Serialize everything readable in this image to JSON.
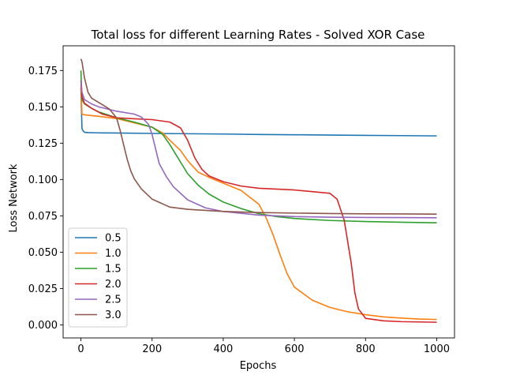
{
  "chart_data": {
    "type": "line",
    "title": "Total loss for different Learning Rates - Solved XOR Case",
    "xlabel": "Epochs",
    "ylabel": "Loss Network",
    "xlim": [
      -50,
      1050
    ],
    "ylim": [
      -0.009,
      0.192
    ],
    "grid": false,
    "legend_position": "lower-left",
    "x_ticks": [
      0,
      200,
      400,
      600,
      800,
      1000
    ],
    "x_tick_labels": [
      "0",
      "200",
      "400",
      "600",
      "800",
      "1000"
    ],
    "y_ticks": [
      0.0,
      0.025,
      0.05,
      0.075,
      0.1,
      0.125,
      0.15,
      0.175
    ],
    "y_tick_labels": [
      "0.000",
      "0.025",
      "0.050",
      "0.075",
      "0.100",
      "0.125",
      "0.150",
      "0.175"
    ],
    "series": [
      {
        "name": "0.5",
        "color": "#1f77b4",
        "x": [
          0,
          3,
          6,
          10,
          20,
          50,
          100,
          200,
          300,
          400,
          500,
          600,
          700,
          800,
          900,
          1000
        ],
        "y": [
          0.163,
          0.135,
          0.1335,
          0.1325,
          0.1323,
          0.1321,
          0.132,
          0.1317,
          0.1315,
          0.1313,
          0.131,
          0.1308,
          0.1306,
          0.1304,
          0.1302,
          0.13
        ]
      },
      {
        "name": "1.0",
        "color": "#ff7f0e",
        "x": [
          0,
          3,
          10,
          50,
          100,
          150,
          200,
          230,
          250,
          280,
          300,
          330,
          360,
          400,
          450,
          500,
          520,
          540,
          560,
          580,
          600,
          650,
          700,
          750,
          800,
          850,
          900,
          950,
          1000
        ],
        "y": [
          0.165,
          0.145,
          0.1445,
          0.1435,
          0.142,
          0.139,
          0.136,
          0.132,
          0.127,
          0.12,
          0.113,
          0.105,
          0.1015,
          0.0975,
          0.0925,
          0.083,
          0.074,
          0.062,
          0.048,
          0.035,
          0.026,
          0.017,
          0.012,
          0.009,
          0.007,
          0.0055,
          0.0047,
          0.004,
          0.0037
        ]
      },
      {
        "name": "1.5",
        "color": "#2ca02c",
        "x": [
          0,
          3,
          10,
          30,
          50,
          100,
          150,
          200,
          230,
          250,
          270,
          300,
          330,
          360,
          400,
          450,
          500,
          550,
          600,
          700,
          800,
          900,
          1000
        ],
        "y": [
          0.175,
          0.155,
          0.152,
          0.149,
          0.1465,
          0.1425,
          0.1395,
          0.136,
          0.131,
          0.124,
          0.116,
          0.104,
          0.096,
          0.09,
          0.0845,
          0.08,
          0.0765,
          0.0745,
          0.0732,
          0.0718,
          0.0711,
          0.0706,
          0.0702
        ]
      },
      {
        "name": "2.0",
        "color": "#d62728",
        "x": [
          0,
          3,
          10,
          30,
          60,
          100,
          150,
          200,
          250,
          280,
          300,
          320,
          340,
          360,
          400,
          450,
          500,
          600,
          700,
          720,
          740,
          760,
          770,
          780,
          800,
          850,
          900,
          1000
        ],
        "y": [
          0.168,
          0.157,
          0.1525,
          0.149,
          0.145,
          0.1425,
          0.1418,
          0.1412,
          0.1395,
          0.1355,
          0.127,
          0.115,
          0.107,
          0.1025,
          0.0985,
          0.0955,
          0.094,
          0.0928,
          0.0905,
          0.0865,
          0.072,
          0.042,
          0.022,
          0.011,
          0.0045,
          0.0028,
          0.0022,
          0.0018
        ]
      },
      {
        "name": "2.5",
        "color": "#9467bd",
        "x": [
          0,
          3,
          10,
          30,
          50,
          100,
          150,
          170,
          190,
          200,
          210,
          220,
          240,
          260,
          300,
          350,
          400,
          500,
          600,
          700,
          800,
          900,
          1000
        ],
        "y": [
          0.168,
          0.16,
          0.155,
          0.152,
          0.15,
          0.147,
          0.145,
          0.143,
          0.138,
          0.131,
          0.121,
          0.111,
          0.102,
          0.095,
          0.086,
          0.0805,
          0.078,
          0.0755,
          0.0745,
          0.0741,
          0.0739,
          0.0738,
          0.0737
        ]
      },
      {
        "name": "3.0",
        "color": "#8c564b",
        "x": [
          0,
          3,
          10,
          20,
          30,
          50,
          80,
          100,
          110,
          120,
          130,
          140,
          150,
          170,
          200,
          250,
          300,
          400,
          500,
          600,
          700,
          800,
          900,
          1000
        ],
        "y": [
          0.183,
          0.181,
          0.17,
          0.16,
          0.156,
          0.153,
          0.1485,
          0.1425,
          0.134,
          0.124,
          0.114,
          0.106,
          0.1005,
          0.0935,
          0.0865,
          0.081,
          0.0795,
          0.078,
          0.0773,
          0.0769,
          0.0766,
          0.0764,
          0.0763,
          0.0762
        ]
      }
    ]
  }
}
